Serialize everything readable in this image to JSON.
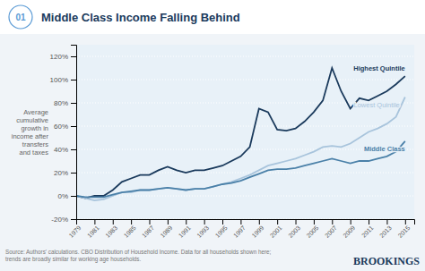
{
  "chart_data": {
    "type": "line",
    "title": "Middle Class Income Falling Behind",
    "ylabel": "Average\ncumulative\ngrowth in\nincome after\ntransfers\nand taxes",
    "annotations": [
      "01",
      "Source: Authors' calculations. CBO Distribution of Household Income. Data for all households shown here;\ntrends are broadly similar for working age households.",
      "BROOKINGS"
    ],
    "x": [
      1979,
      1980,
      1981,
      1982,
      1983,
      1984,
      1985,
      1986,
      1987,
      1988,
      1989,
      1990,
      1991,
      1992,
      1993,
      1994,
      1995,
      1996,
      1997,
      1998,
      1999,
      2000,
      2001,
      2002,
      2003,
      2004,
      2005,
      2006,
      2007,
      2008,
      2009,
      2010,
      2011,
      2012,
      2013,
      2014,
      2015
    ],
    "series": [
      {
        "name": "Highest Quintile",
        "color": "#1a3a5c",
        "values": [
          0,
          -2,
          0,
          0,
          5,
          12,
          15,
          18,
          18,
          22,
          25,
          22,
          20,
          22,
          22,
          24,
          26,
          30,
          34,
          42,
          75,
          72,
          57,
          56,
          58,
          64,
          72,
          82,
          110,
          90,
          75,
          84,
          82,
          86,
          90,
          96,
          103
        ]
      },
      {
        "name": "Lowest Quintile",
        "color": "#a8c4dc",
        "values": [
          0,
          -2,
          -4,
          -3,
          0,
          3,
          3,
          5,
          5,
          6,
          7,
          6,
          5,
          6,
          6,
          8,
          10,
          12,
          15,
          18,
          22,
          26,
          28,
          30,
          32,
          35,
          38,
          42,
          43,
          42,
          45,
          50,
          55,
          58,
          62,
          68,
          85
        ]
      },
      {
        "name": "Middle Class",
        "color": "#4a80a8",
        "values": [
          0,
          -1,
          -1,
          -1,
          1,
          3,
          4,
          5,
          5,
          6,
          7,
          6,
          5,
          6,
          6,
          8,
          10,
          11,
          13,
          16,
          19,
          22,
          23,
          23,
          24,
          26,
          28,
          30,
          32,
          30,
          28,
          30,
          30,
          32,
          34,
          38,
          47
        ]
      }
    ],
    "xlim": [
      1979,
      2016
    ],
    "xticks": [
      1979,
      1981,
      1983,
      1985,
      1987,
      1989,
      1991,
      1993,
      1995,
      1997,
      1999,
      2001,
      2003,
      2005,
      2007,
      2009,
      2011,
      2013,
      2015
    ],
    "ylim": [
      -20,
      130
    ],
    "yticks": [
      {
        "value": -20,
        "label": "-20%"
      },
      {
        "value": 0,
        "label": "0%"
      },
      {
        "value": 20,
        "label": "20%"
      },
      {
        "value": 40,
        "label": "40%"
      },
      {
        "value": 60,
        "label": "60%"
      },
      {
        "value": 80,
        "label": "80%"
      },
      {
        "value": 100,
        "label": "100%"
      },
      {
        "value": 120,
        "label": "120%"
      }
    ],
    "grid": true
  }
}
